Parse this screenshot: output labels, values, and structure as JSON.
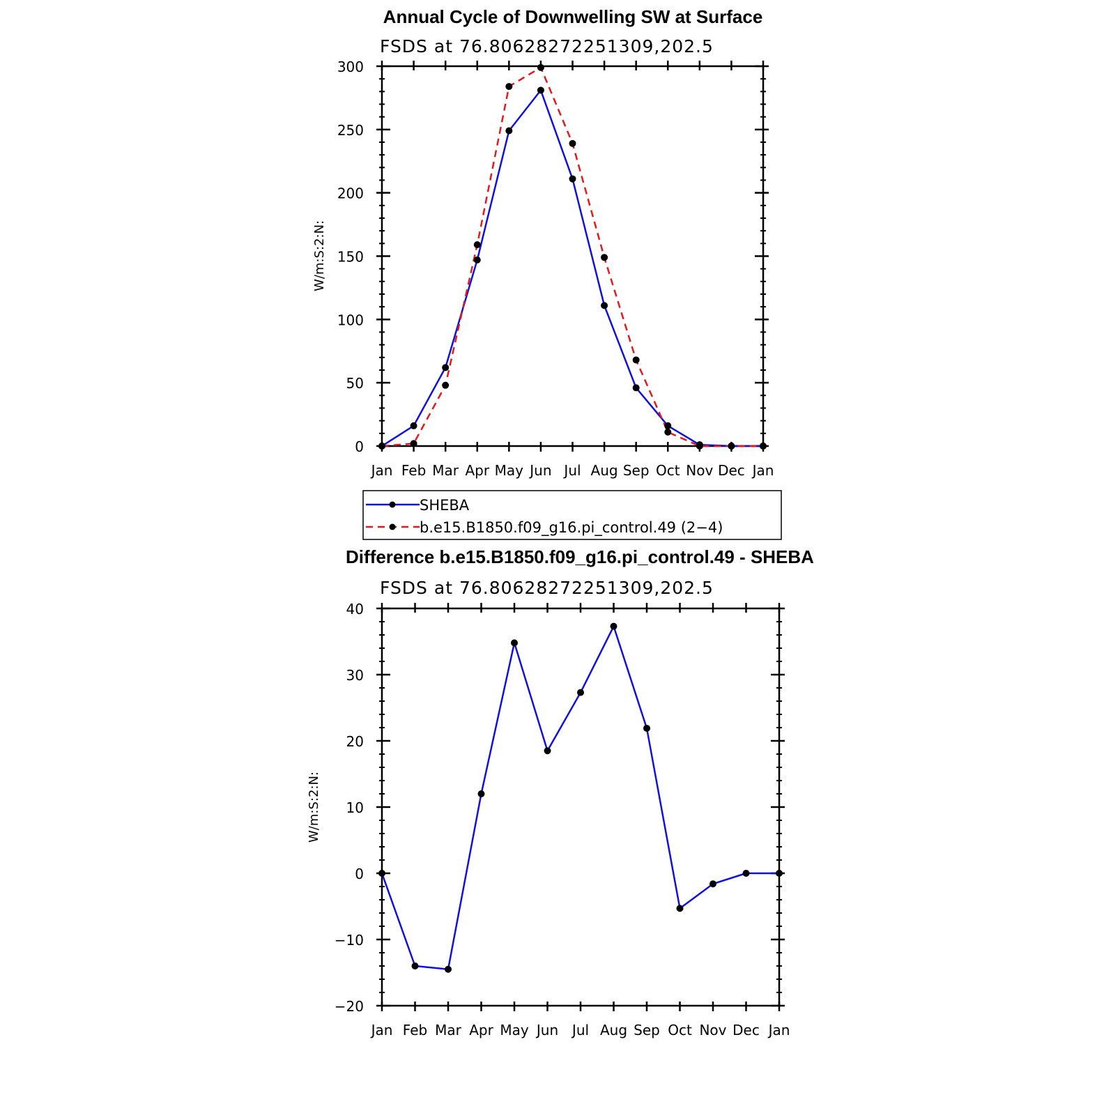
{
  "colors": {
    "sheba": "#1010e0",
    "model": "#e31a1c",
    "marker": "#000000"
  },
  "chart_data": [
    {
      "type": "line",
      "title": "Annual Cycle of Downwelling SW at Surface",
      "subtitle": "FSDS at 76.80628272251309,202.5",
      "ylabel": "W/m:S:2:N:",
      "categories": [
        "Jan",
        "Feb",
        "Mar",
        "Apr",
        "May",
        "Jun",
        "Jul",
        "Aug",
        "Sep",
        "Oct",
        "Nov",
        "Dec",
        "Jan"
      ],
      "ylim": [
        0,
        300
      ],
      "yticks": [
        0,
        50,
        100,
        150,
        200,
        250,
        300
      ],
      "series": [
        {
          "name": "SHEBA",
          "style": "solid",
          "values": [
            0,
            16,
            62,
            147,
            249,
            281,
            211,
            111,
            46,
            16,
            1,
            0,
            0
          ]
        },
        {
          "name": "b.e15.B1850.f09_g16.pi_control.49 (2−4)",
          "style": "dashed",
          "values": [
            0,
            2,
            48,
            159,
            284,
            299,
            239,
            149,
            68,
            11,
            0,
            0,
            0
          ]
        }
      ],
      "legend": "bottom"
    },
    {
      "type": "line",
      "title": "Difference b.e15.B1850.f09_g16.pi_control.49 - SHEBA",
      "subtitle": "FSDS at 76.80628272251309,202.5",
      "ylabel": "W/m:S:2:N:",
      "categories": [
        "Jan",
        "Feb",
        "Mar",
        "Apr",
        "May",
        "Jun",
        "Jul",
        "Aug",
        "Sep",
        "Oct",
        "Nov",
        "Dec",
        "Jan"
      ],
      "ylim": [
        -20,
        40
      ],
      "yticks": [
        -20,
        -10,
        0,
        10,
        20,
        30,
        40
      ],
      "ytick_labels": [
        "−20",
        "−10",
        "0",
        "10",
        "20",
        "30",
        "40"
      ],
      "series": [
        {
          "style": "solid",
          "values": [
            0,
            -14,
            -14.5,
            12,
            34.8,
            18.5,
            27.3,
            37.3,
            21.9,
            -5.3,
            -1.6,
            0,
            0
          ]
        }
      ]
    }
  ]
}
